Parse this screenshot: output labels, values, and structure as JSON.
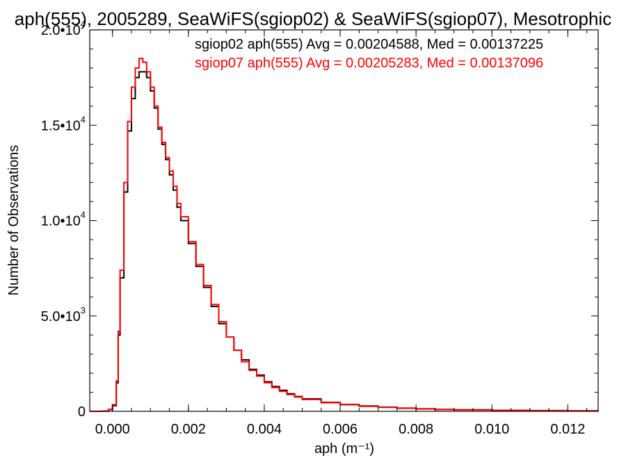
{
  "chart_data": {
    "type": "line",
    "title": "aph(555), 2005289, SeaWiFS(sgiop02) & SeaWiFS(sgiop07), Mesotrophic",
    "xlabel": "aph (m⁻¹)",
    "ylabel": "Number of Observations",
    "xlim": [
      -0.0006,
      0.0128
    ],
    "ylim": [
      0,
      20000
    ],
    "x_ticks": [
      {
        "value": 0.0,
        "label": "0.000"
      },
      {
        "value": 0.002,
        "label": "0.002"
      },
      {
        "value": 0.004,
        "label": "0.004"
      },
      {
        "value": 0.006,
        "label": "0.006"
      },
      {
        "value": 0.008,
        "label": "0.008"
      },
      {
        "value": 0.01,
        "label": "0.010"
      },
      {
        "value": 0.012,
        "label": "0.012"
      }
    ],
    "y_ticks": [
      {
        "value": 0,
        "mantissa": "0",
        "exponent": ""
      },
      {
        "value": 5000,
        "mantissa": "5.0•10",
        "exponent": "3"
      },
      {
        "value": 10000,
        "mantissa": "1.0•10",
        "exponent": "4"
      },
      {
        "value": 15000,
        "mantissa": "1.5•10",
        "exponent": "4"
      },
      {
        "value": 20000,
        "mantissa": "2.0•10",
        "exponent": "4"
      }
    ],
    "grid": false,
    "legend_position": "top-right",
    "series": [
      {
        "name": "sgiop02 aph(555) Avg = 0.00204588, Med = 0.00137225",
        "color": "#000000",
        "step": true,
        "x": [
          -0.0006,
          -0.0003,
          -0.0001,
          0.0,
          0.0001,
          0.00015,
          0.0002,
          0.0003,
          0.0004,
          0.0005,
          0.0006,
          0.0007,
          0.0008,
          0.0009,
          0.001,
          0.0011,
          0.0012,
          0.0013,
          0.0014,
          0.0015,
          0.0016,
          0.0017,
          0.0018,
          0.002,
          0.0022,
          0.0024,
          0.0026,
          0.0028,
          0.003,
          0.0032,
          0.0034,
          0.0036,
          0.0038,
          0.004,
          0.0042,
          0.0044,
          0.0046,
          0.0048,
          0.005,
          0.0055,
          0.006,
          0.0065,
          0.007,
          0.0075,
          0.008,
          0.0085,
          0.009,
          0.01,
          0.011,
          0.012,
          0.0128
        ],
        "y": [
          0,
          10,
          100,
          300,
          1500,
          4000,
          7000,
          11500,
          14700,
          16400,
          17500,
          17800,
          17800,
          17500,
          16800,
          15900,
          14800,
          14000,
          13200,
          12400,
          11600,
          10700,
          10000,
          8800,
          7600,
          6500,
          5500,
          4600,
          3900,
          3200,
          2700,
          2200,
          1900,
          1550,
          1300,
          1100,
          920,
          780,
          650,
          470,
          360,
          280,
          220,
          170,
          130,
          100,
          80,
          55,
          40,
          25,
          15
        ]
      },
      {
        "name": "sgiop07 aph(555) Avg = 0.00205283, Med = 0.00137096",
        "color": "#ff0000",
        "step": true,
        "x": [
          -0.0006,
          -0.0003,
          -0.0001,
          0.0,
          0.0001,
          0.00015,
          0.0002,
          0.0003,
          0.0004,
          0.0005,
          0.0006,
          0.0007,
          0.0008,
          0.0009,
          0.001,
          0.0011,
          0.0012,
          0.0013,
          0.0014,
          0.0015,
          0.0016,
          0.0017,
          0.0018,
          0.002,
          0.0022,
          0.0024,
          0.0026,
          0.0028,
          0.003,
          0.0032,
          0.0034,
          0.0036,
          0.0038,
          0.004,
          0.0042,
          0.0044,
          0.0046,
          0.0048,
          0.005,
          0.0055,
          0.006,
          0.0065,
          0.007,
          0.0075,
          0.008,
          0.0085,
          0.009,
          0.01,
          0.011,
          0.012,
          0.0128
        ],
        "y": [
          0,
          10,
          100,
          350,
          1600,
          4200,
          7400,
          12000,
          15200,
          17000,
          18000,
          18500,
          18300,
          17800,
          17000,
          16000,
          14900,
          14100,
          13300,
          12600,
          11800,
          10900,
          10200,
          8900,
          7700,
          6600,
          5600,
          4700,
          3900,
          3200,
          2600,
          2150,
          1850,
          1500,
          1250,
          1050,
          880,
          750,
          620,
          450,
          345,
          265,
          210,
          160,
          125,
          95,
          75,
          50,
          35,
          22,
          12
        ]
      }
    ]
  }
}
